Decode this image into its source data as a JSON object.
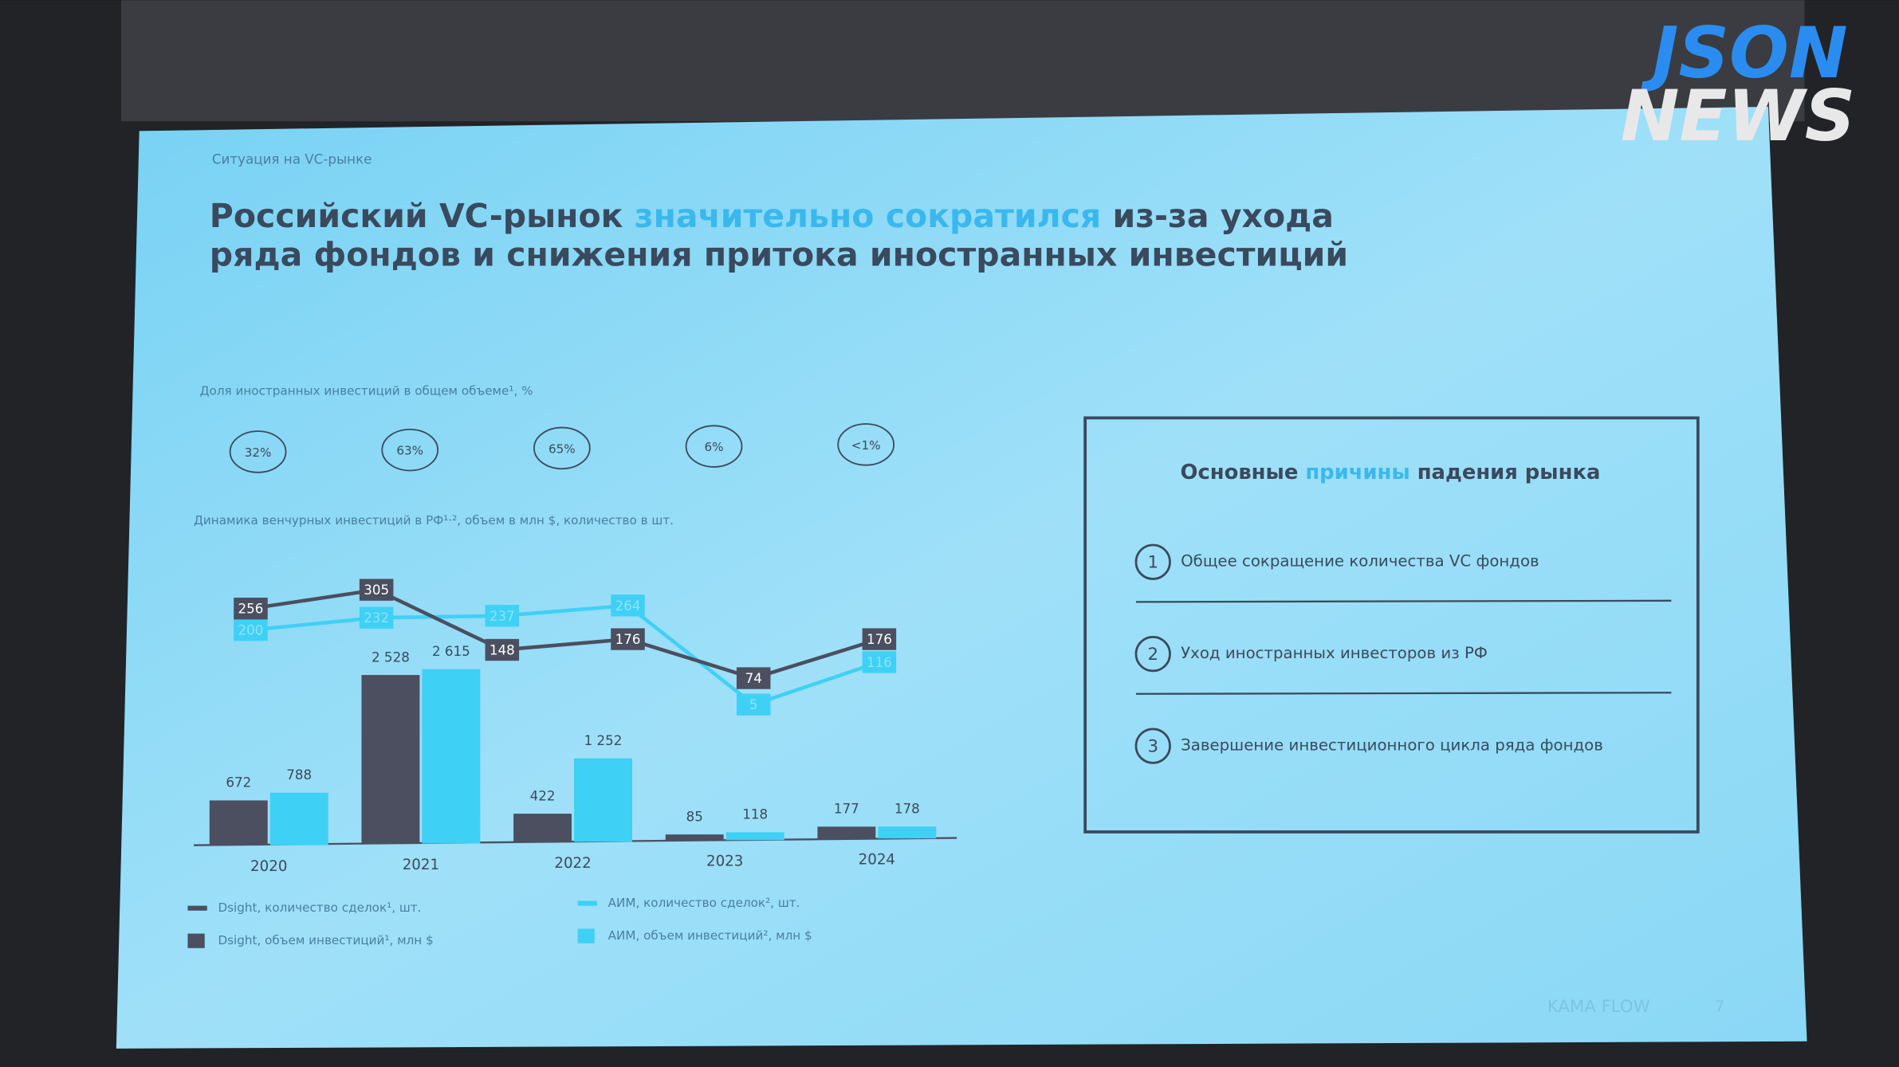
{
  "watermark": {
    "line1": "JSON",
    "line2": "NEWS"
  },
  "slide": {
    "section": "Ситуация на VC-рынке",
    "title_part1": "Российский VC-рынок ",
    "title_highlight": "значительно сократился",
    "title_part2": " из-за ухода",
    "title_line2": "ряда фондов и снижения притока иностранных инвестиций",
    "footer_brand": "KAMA FLOW",
    "page_number": 7
  },
  "share": {
    "title": "Доля иностранных инвестиций в общем объеме¹, %",
    "values": [
      "32%",
      "63%",
      "65%",
      "6%",
      "<1%"
    ]
  },
  "chart_data": [
    {
      "type": "bar",
      "title": "Динамика венчурных инвестиций в РФ¹·², объем в млн $, количество в шт.",
      "categories": [
        "2020",
        "2021",
        "2022",
        "2023",
        "2024"
      ],
      "series": [
        {
          "name": "Dsight, объем инвестиций¹, млн $",
          "color": "#4b4f60",
          "values": [
            672,
            2528,
            422,
            85,
            177
          ],
          "value_labels": [
            "672",
            "2 528",
            "422",
            "85",
            "177"
          ]
        },
        {
          "name": "АИМ, объем инвестиций², млн $",
          "color": "#3fd0f6",
          "values": [
            788,
            2615,
            1252,
            118,
            178
          ],
          "value_labels": [
            "788",
            "2 615",
            "1 252",
            "118",
            "178"
          ]
        }
      ]
    },
    {
      "type": "line",
      "categories": [
        null,
        null,
        null,
        null,
        null,
        null
      ],
      "series": [
        {
          "name": "Dsight, количество сделок¹, шт.",
          "color": "#4b4f60",
          "values": [
            256,
            305,
            148,
            176,
            74,
            176
          ]
        },
        {
          "name": "АИМ, количество сделок², шт.",
          "color": "#3fd0f6",
          "values": [
            200,
            232,
            237,
            264,
            5,
            116
          ]
        }
      ]
    }
  ],
  "reasons": {
    "title_part1": "Основные ",
    "title_highlight": "причины",
    "title_part2": " падения рынка",
    "items": [
      {
        "number": "1",
        "text": "Общее сокращение количества VC фондов"
      },
      {
        "number": "2",
        "text": "Уход иностранных инвесторов из РФ"
      },
      {
        "number": "3",
        "text": "Завершение инвестиционного цикла ряда фондов"
      }
    ]
  }
}
